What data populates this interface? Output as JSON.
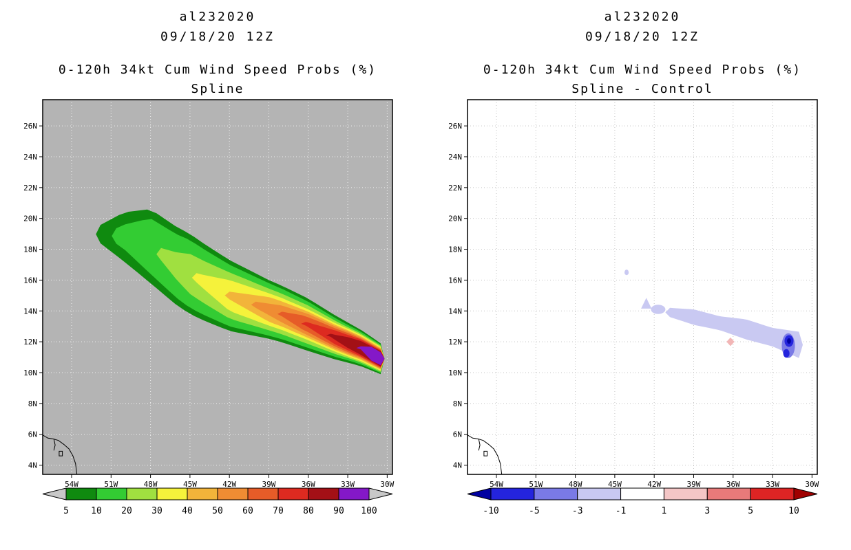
{
  "page": {
    "background": "#ffffff"
  },
  "map_common": {
    "axes": {
      "lon_left_w": 56.2,
      "lon_right_w": 29.6,
      "lat_bottom": 3.4,
      "lat_top": 27.7,
      "lon_ticks_w": [
        54,
        51,
        48,
        45,
        42,
        39,
        36,
        33,
        30
      ],
      "lon_tick_labels": [
        "54W",
        "51W",
        "48W",
        "45W",
        "42W",
        "39W",
        "36W",
        "33W",
        "30W"
      ],
      "lat_ticks": [
        4,
        6,
        8,
        10,
        12,
        14,
        16,
        18,
        20,
        22,
        24,
        26
      ],
      "lat_tick_labels": [
        "4N",
        "6N",
        "8N",
        "10N",
        "12N",
        "14N",
        "16N",
        "18N",
        "20N",
        "22N",
        "24N",
        "26N"
      ]
    },
    "coastline_paths": [
      [
        [
          56.2,
          5.95
        ],
        [
          55.8,
          5.75
        ],
        [
          55.4,
          5.7
        ],
        [
          55.0,
          5.6
        ],
        [
          54.6,
          5.35
        ],
        [
          54.2,
          5.05
        ],
        [
          53.9,
          4.6
        ],
        [
          53.7,
          4.1
        ],
        [
          53.6,
          3.4
        ]
      ],
      [
        [
          55.35,
          5.7
        ],
        [
          55.25,
          5.3
        ],
        [
          55.35,
          4.95
        ]
      ]
    ],
    "coastline_islands": [
      [
        [
          54.95,
          4.9
        ],
        [
          54.7,
          4.9
        ],
        [
          54.7,
          4.6
        ],
        [
          54.95,
          4.6
        ]
      ]
    ]
  },
  "chart_data": [
    {
      "type": "filled_contour_map",
      "storm_id": "al232020",
      "datetime": "09/18/20 12Z",
      "subtitle": "0-120h 34kt Cum Wind Speed Probs (%)",
      "variant": "Spline",
      "units": "percent probability",
      "background": "#b4b4b4",
      "grid_color": "#f0f0f0",
      "track_centerline_w": [
        [
          30.5,
          10.9
        ],
        [
          32,
          11.6
        ],
        [
          34,
          12.3
        ],
        [
          36,
          13.1
        ],
        [
          38,
          13.8
        ],
        [
          40,
          14.4
        ],
        [
          42,
          15.0
        ],
        [
          44,
          15.9
        ],
        [
          46,
          16.9
        ],
        [
          48,
          18.2
        ],
        [
          50,
          18.8
        ],
        [
          52,
          19.0
        ]
      ],
      "swath_tip_lon_w": 30.5,
      "swath_levels": [
        {
          "level": 5,
          "color": "#0f8a0f",
          "end_lon_w": 51.8,
          "hw_lons": [
            30.5,
            33,
            36,
            39,
            42,
            45,
            48,
            50,
            51.8
          ],
          "hw": [
            1.0,
            1.3,
            1.7,
            1.9,
            2.3,
            2.6,
            2.4,
            1.6,
            0.6
          ]
        },
        {
          "level": 10,
          "color": "#33cc33",
          "end_lon_w": 50.6,
          "hw_lons": [
            30.5,
            33,
            36,
            39,
            42,
            45,
            48,
            50.6
          ],
          "hw": [
            0.92,
            1.15,
            1.5,
            1.7,
            2.0,
            2.2,
            1.8,
            0.5
          ]
        },
        {
          "level": 20,
          "color": "#a0e040",
          "end_lon_w": 47.2,
          "hw_lons": [
            30.5,
            33,
            36,
            39,
            42,
            45,
            47.2
          ],
          "hw": [
            0.85,
            1.0,
            1.25,
            1.35,
            1.5,
            1.3,
            0.4
          ]
        },
        {
          "level": 30,
          "color": "#f5f23b",
          "end_lon_w": 44.5,
          "hw_lons": [
            30.5,
            33,
            36,
            39,
            42,
            44.5
          ],
          "hw": [
            0.78,
            0.9,
            1.0,
            1.05,
            1.0,
            0.3
          ]
        },
        {
          "level": 40,
          "color": "#f2b43a",
          "end_lon_w": 42.0,
          "hw_lons": [
            30.5,
            33,
            36,
            39,
            42
          ],
          "hw": [
            0.7,
            0.8,
            0.85,
            0.8,
            0.25
          ]
        },
        {
          "level": 50,
          "color": "#ef8c33",
          "end_lon_w": 40.0,
          "hw_lons": [
            30.5,
            33,
            36,
            38,
            40
          ],
          "hw": [
            0.65,
            0.72,
            0.7,
            0.55,
            0.2
          ]
        },
        {
          "level": 60,
          "color": "#e65c28",
          "end_lon_w": 38.0,
          "hw_lons": [
            30.5,
            33,
            35,
            36.5,
            38
          ],
          "hw": [
            0.6,
            0.62,
            0.55,
            0.45,
            0.15
          ]
        },
        {
          "level": 70,
          "color": "#dd2a20",
          "end_lon_w": 36.2,
          "hw_lons": [
            30.5,
            32,
            34,
            36.2
          ],
          "hw": [
            0.55,
            0.55,
            0.45,
            0.12
          ]
        },
        {
          "level": 80,
          "color": "#a31016",
          "end_lon_w": 34.3,
          "hw_lons": [
            30.5,
            32,
            33,
            34.3
          ],
          "hw": [
            0.5,
            0.45,
            0.35,
            0.1
          ]
        },
        {
          "level": 90,
          "color": "#8418c8",
          "end_lon_w": 32.0,
          "hw_lons": [
            30.5,
            31.2,
            32.0
          ],
          "hw": [
            0.42,
            0.45,
            0.1
          ]
        }
      ],
      "colorbar": {
        "labels": [
          "5",
          "10",
          "20",
          "30",
          "40",
          "50",
          "60",
          "70",
          "80",
          "90",
          "100"
        ],
        "colors": [
          "#0f8a0f",
          "#33cc33",
          "#a0e040",
          "#f5f23b",
          "#f2b43a",
          "#ef8c33",
          "#e65c28",
          "#dd2a20",
          "#a31016",
          "#8418c8"
        ],
        "arrow_left_color": "#c8c8c8",
        "arrow_right_color": "#c8c8c8"
      }
    },
    {
      "type": "filled_contour_map",
      "storm_id": "al232020",
      "datetime": "09/18/20 12Z",
      "subtitle": "0-120h 34kt Cum Wind Speed Probs (%)",
      "variant": "Spline - Control",
      "units": "percent difference",
      "background": "#ffffff",
      "grid_color": "#c4c4c4",
      "shapes": [
        {
          "kind": "swath",
          "color": "#c9c9f2",
          "centerline_w": [
            [
              31.0,
              11.8
            ],
            [
              33,
              12.3
            ],
            [
              35,
              12.8
            ],
            [
              37,
              13.2
            ],
            [
              39,
              13.6
            ],
            [
              40.8,
              13.9
            ]
          ],
          "tip_lon_w": 31.0,
          "end_lon_w": 40.8,
          "hw_lons": [
            31.0,
            33,
            35,
            37,
            39,
            40.8
          ],
          "hw": [
            0.85,
            0.6,
            0.65,
            0.45,
            0.5,
            0.3
          ]
        },
        {
          "kind": "ellipse",
          "color": "#c9c9f2",
          "lon_w": 41.7,
          "lat": 14.1,
          "rx": 0.55,
          "ry": 0.3
        },
        {
          "kind": "triangle",
          "color": "#c9c9f2",
          "lon_w": 42.6,
          "lat": 14.5,
          "rx": 0.4,
          "ry": 0.35
        },
        {
          "kind": "ellipse",
          "color": "#c9c9f2",
          "lon_w": 44.1,
          "lat": 16.5,
          "rx": 0.16,
          "ry": 0.18
        },
        {
          "kind": "ellipse",
          "color": "#7a7ae6",
          "lon_w": 31.8,
          "lat": 11.75,
          "rx": 0.5,
          "ry": 0.8
        },
        {
          "kind": "ellipse",
          "color": "#2424dd",
          "lon_w": 31.75,
          "lat": 12.05,
          "rx": 0.34,
          "ry": 0.38
        },
        {
          "kind": "ellipse",
          "color": "#2424dd",
          "lon_w": 31.95,
          "lat": 11.25,
          "rx": 0.24,
          "ry": 0.28
        },
        {
          "kind": "ellipse",
          "color": "#0000a0",
          "lon_w": 31.75,
          "lat": 12.05,
          "rx": 0.15,
          "ry": 0.18
        },
        {
          "kind": "diamond",
          "color": "#f2b6b6",
          "lon_w": 36.2,
          "lat": 12.0,
          "rx": 0.3,
          "ry": 0.28
        }
      ],
      "colorbar": {
        "labels": [
          "-10",
          "-5",
          "-3",
          "-1",
          "1",
          "3",
          "5",
          "10"
        ],
        "colors": [
          "#2424dd",
          "#7a7ae6",
          "#c9c9f2",
          "#ffffff",
          "#f4c6c6",
          "#e87a7a",
          "#dd2424"
        ],
        "arrow_left_color": "#0000a0",
        "arrow_right_color": "#a00000"
      }
    }
  ]
}
